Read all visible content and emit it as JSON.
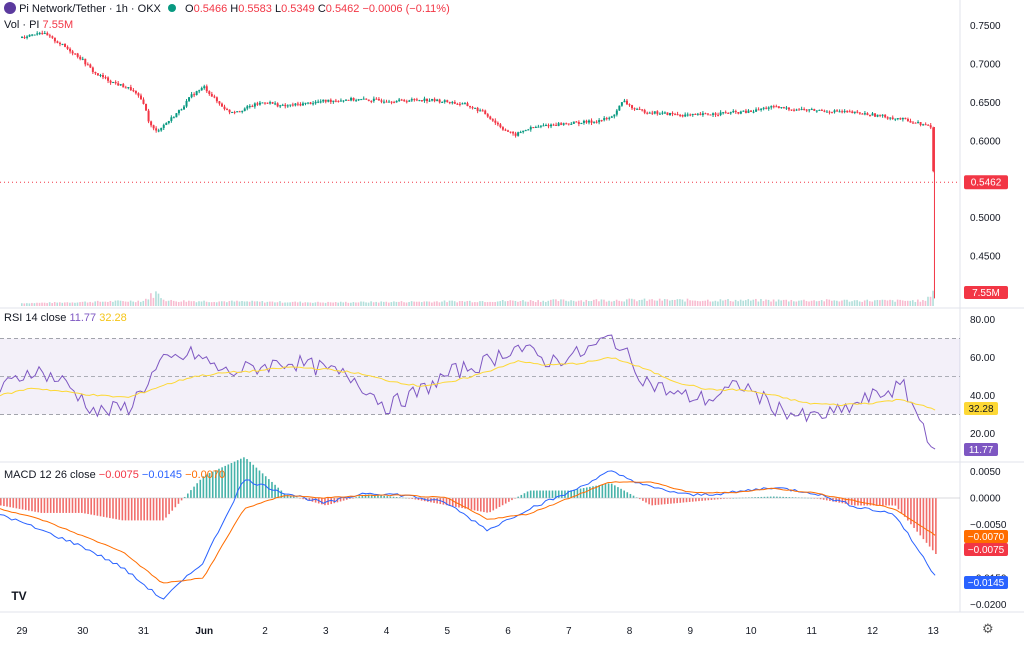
{
  "header": {
    "symbol": "Pi Network/Tether · 1h · OKX",
    "o_label": "O",
    "o": "0.5466",
    "h_label": "H",
    "h": "0.5583",
    "l_label": "L",
    "l": "0.5349",
    "c_label": "C",
    "c": "0.5462",
    "change": "−0.0006 (−0.11%)",
    "vol_label": "Vol · PI",
    "vol_value": "7.55M"
  },
  "indicators": {
    "rsi_label": "RSI 14 close",
    "rsi_value": "11.77",
    "rsi_ma": "32.28",
    "macd_label": "MACD 12 26 close",
    "macd_hist": "−0.0075",
    "macd_line": "−0.0145",
    "macd_signal": "−0.0070"
  },
  "colors": {
    "up": "#089981",
    "down": "#f23645",
    "rsi": "#7e57c2",
    "rsi_ma": "#fdd835",
    "macd": "#2962ff",
    "signal": "#ff6d00"
  },
  "chart_data": [
    {
      "type": "line",
      "title": "Pi Network/Tether · 1h · OKX",
      "x_tick_labels": [
        "29",
        "30",
        "31",
        "Jun",
        "2",
        "3",
        "4",
        "5",
        "6",
        "7",
        "8",
        "9",
        "10",
        "11",
        "12",
        "13"
      ],
      "y_tick_labels": [
        "0.7500",
        "0.7000",
        "0.6500",
        "0.6000",
        "0.5500",
        "0.5000",
        "0.4500",
        "0.4000"
      ],
      "ylim": [
        0.385,
        0.76
      ],
      "last_price": "0.5462",
      "volume_label": "7.55M",
      "close_path": [
        [
          0,
          0.735
        ],
        [
          0.3,
          0.742
        ],
        [
          0.6,
          0.728
        ],
        [
          0.9,
          0.712
        ],
        [
          1.0,
          0.705
        ],
        [
          1.2,
          0.688
        ],
        [
          1.5,
          0.676
        ],
        [
          1.8,
          0.667
        ],
        [
          2.0,
          0.65
        ],
        [
          2.1,
          0.622
        ],
        [
          2.2,
          0.612
        ],
        [
          2.4,
          0.625
        ],
        [
          2.6,
          0.64
        ],
        [
          2.8,
          0.66
        ],
        [
          3.0,
          0.67
        ],
        [
          3.2,
          0.652
        ],
        [
          3.4,
          0.638
        ],
        [
          3.6,
          0.64
        ],
        [
          3.8,
          0.646
        ],
        [
          4.0,
          0.651
        ],
        [
          4.3,
          0.645
        ],
        [
          4.6,
          0.648
        ],
        [
          5.0,
          0.652
        ],
        [
          5.4,
          0.654
        ],
        [
          5.8,
          0.653
        ],
        [
          6.2,
          0.652
        ],
        [
          6.6,
          0.654
        ],
        [
          7.0,
          0.651
        ],
        [
          7.3,
          0.647
        ],
        [
          7.6,
          0.637
        ],
        [
          7.9,
          0.617
        ],
        [
          8.1,
          0.607
        ],
        [
          8.3,
          0.615
        ],
        [
          8.6,
          0.62
        ],
        [
          9.0,
          0.623
        ],
        [
          9.4,
          0.625
        ],
        [
          9.7,
          0.63
        ],
        [
          9.9,
          0.652
        ],
        [
          10.1,
          0.64
        ],
        [
          10.5,
          0.636
        ],
        [
          11.0,
          0.633
        ],
        [
          11.5,
          0.636
        ],
        [
          12.0,
          0.638
        ],
        [
          12.3,
          0.644
        ],
        [
          12.6,
          0.642
        ],
        [
          13.0,
          0.64
        ],
        [
          13.5,
          0.638
        ],
        [
          14.0,
          0.634
        ],
        [
          14.5,
          0.628
        ],
        [
          14.8,
          0.622
        ],
        [
          14.97,
          0.618
        ],
        [
          15.0,
          0.56
        ],
        [
          15.03,
          0.5462
        ]
      ],
      "volume_path": [
        [
          0,
          0.05
        ],
        [
          2.0,
          0.2
        ],
        [
          2.2,
          0.7
        ],
        [
          2.4,
          0.2
        ],
        [
          5.0,
          0.1
        ],
        [
          9.9,
          0.25
        ],
        [
          14.9,
          0.2
        ],
        [
          15.0,
          1.0
        ],
        [
          15.03,
          0.4
        ]
      ]
    },
    {
      "type": "line",
      "title": "RSI 14 close",
      "series": [
        {
          "name": "RSI",
          "values": [
            43,
            54,
            47,
            31,
            34,
            57,
            62,
            52,
            55,
            58,
            54,
            49,
            34,
            42,
            52,
            57,
            66,
            58,
            62,
            71,
            48,
            40,
            38,
            46,
            34,
            28,
            31,
            39,
            45,
            11.77
          ]
        },
        {
          "name": "MA",
          "values": [
            40,
            44,
            42,
            40,
            39,
            45,
            50,
            52,
            53,
            55,
            54,
            52,
            48,
            45,
            47,
            52,
            58,
            56,
            57,
            60,
            54,
            47,
            43,
            43,
            40,
            36,
            35,
            36,
            38,
            32.28
          ]
        }
      ],
      "y_tick_labels": [
        "80.00",
        "60.00",
        "40.00",
        "20.00"
      ],
      "ylim": [
        6,
        84
      ],
      "band": [
        30,
        70
      ]
    },
    {
      "type": "line",
      "title": "MACD 12 26 close",
      "series": [
        {
          "name": "MACD",
          "values": [
            -0.003,
            -0.006,
            -0.009,
            -0.013,
            -0.019,
            -0.012,
            0.0035,
            0.001,
            -0.001,
            0.001,
            0.0005,
            -0.001,
            -0.006,
            -0.002,
            0.001,
            0.005,
            0.002,
            0.0005,
            0.001,
            0.002,
            0.001,
            -0.0015,
            -0.003,
            -0.0145
          ]
        },
        {
          "name": "Signal",
          "values": [
            -0.002,
            -0.004,
            -0.007,
            -0.01,
            -0.016,
            -0.015,
            -0.002,
            0.0005,
            0,
            0.0005,
            0.0005,
            0,
            -0.004,
            -0.003,
            0,
            0.003,
            0.003,
            0.001,
            0.001,
            0.0018,
            0.001,
            -0.0005,
            -0.002,
            -0.007
          ]
        }
      ],
      "y_tick_labels": [
        "0.0050",
        "0.0000",
        "−0.0050",
        "−0.0100",
        "−0.0150",
        "−0.0200"
      ],
      "ylim": [
        -0.021,
        0.006
      ],
      "last_labels": [
        "−0.0070",
        "−0.0075",
        "−0.0145"
      ]
    }
  ]
}
